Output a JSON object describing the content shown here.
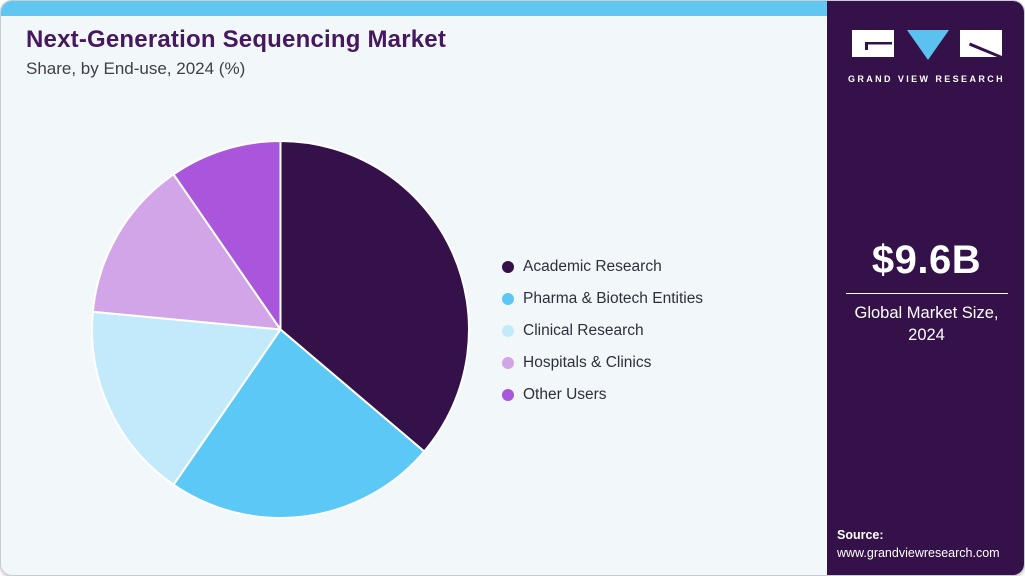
{
  "header": {
    "title": "Next-Generation Sequencing Market",
    "subtitle": "Share, by End-use, 2024 (%)"
  },
  "chart_data": {
    "type": "pie",
    "title": "Next-Generation Sequencing Market Share, by End-use, 2024 (%)",
    "categories": [
      "Academic Research",
      "Pharma & Biotech Entities",
      "Clinical Research",
      "Hospitals & Clinics",
      "Other Users"
    ],
    "values": [
      36.2,
      23.4,
      16.9,
      13.9,
      9.6
    ],
    "unit": "%",
    "colors": [
      "#35114A",
      "#5BC8F5",
      "#C3EAFA",
      "#D2A5E8",
      "#A956DC"
    ],
    "start_angle_deg": 0,
    "direction": "clockwise",
    "legend_position": "right",
    "slice_border_color": "#FFFFFF"
  },
  "sidebar": {
    "brand_name": "GRAND VIEW RESEARCH",
    "market_size_value": "$9.6B",
    "market_size_label": "Global Market Size, 2024",
    "source_label": "Source:",
    "source_url": "www.grandviewresearch.com"
  },
  "theme": {
    "card_background": "#F2F7FA",
    "top_bar_color": "#62C7F0",
    "sidebar_background": "#351149",
    "title_color": "#46185E",
    "subtitle_color": "#3F3F46",
    "legend_text_color": "#2F2F3A",
    "logo_triangle_color": "#5BC1EE"
  }
}
